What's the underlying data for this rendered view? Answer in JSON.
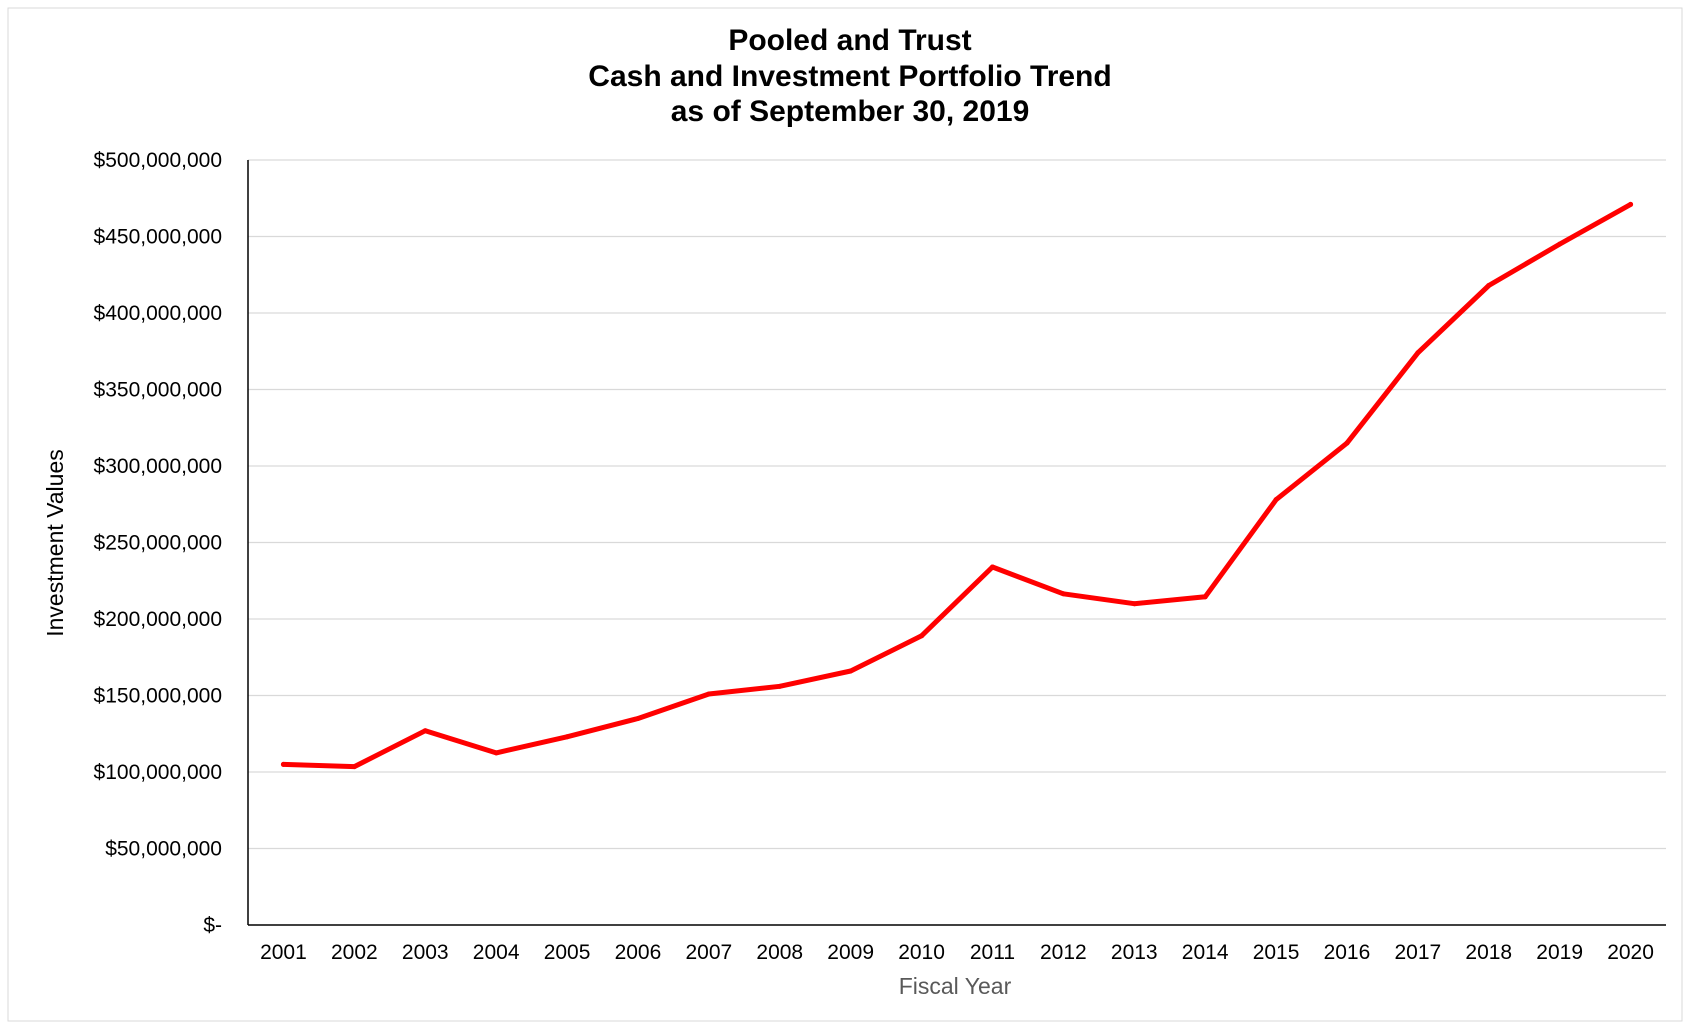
{
  "chart_data": {
    "type": "line",
    "title": [
      "Pooled and Trust",
      "Cash and Investment Portfolio Trend",
      "as of September 30, 2019"
    ],
    "xlabel": "Fiscal Year",
    "ylabel": "Investment Values",
    "ylim": [
      0,
      500000000
    ],
    "grid": true,
    "colors": {
      "line": "#ff0000",
      "grid": "#d9d9d9",
      "axis": "#000000",
      "xlabel": "#595959"
    },
    "y_ticks": [
      {
        "value": 0,
        "label": "$-"
      },
      {
        "value": 50000000,
        "label": "$50,000,000"
      },
      {
        "value": 100000000,
        "label": "$100,000,000"
      },
      {
        "value": 150000000,
        "label": "$150,000,000"
      },
      {
        "value": 200000000,
        "label": "$200,000,000"
      },
      {
        "value": 250000000,
        "label": "$250,000,000"
      },
      {
        "value": 300000000,
        "label": "$300,000,000"
      },
      {
        "value": 350000000,
        "label": "$350,000,000"
      },
      {
        "value": 400000000,
        "label": "$400,000,000"
      },
      {
        "value": 450000000,
        "label": "$450,000,000"
      },
      {
        "value": 500000000,
        "label": "$500,000,000"
      }
    ],
    "categories": [
      "2001",
      "2002",
      "2003",
      "2004",
      "2005",
      "2006",
      "2007",
      "2008",
      "2009",
      "2010",
      "2011",
      "2012",
      "2013",
      "2014",
      "2015",
      "2016",
      "2017",
      "2018",
      "2019",
      "2020"
    ],
    "series": [
      {
        "values": [
          105000000,
          103500000,
          127000000,
          112500000,
          123000000,
          135000000,
          151000000,
          156000000,
          166000000,
          189000000,
          234000000,
          216500000,
          210000000,
          214500000,
          278000000,
          315000000,
          374000000,
          418000000,
          445000000,
          471000000
        ]
      }
    ]
  }
}
